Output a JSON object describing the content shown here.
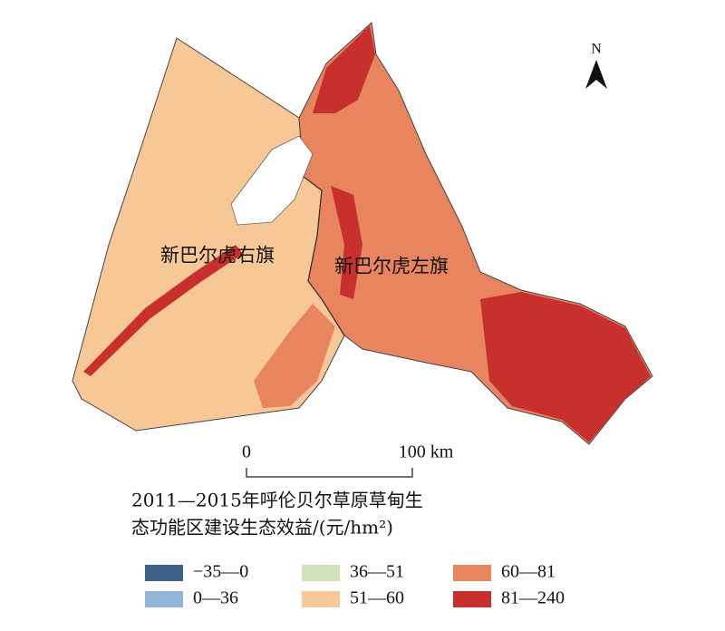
{
  "map": {
    "regions": [
      "新巴尔虎右旗",
      "新巴尔虎左旗"
    ],
    "north": "N",
    "scale_bar": {
      "start": "0",
      "end": "100 km"
    },
    "legend": {
      "title": [
        "2011—2015年呼伦贝尔草原草甸生",
        "态功能区建设生态效益/(元/hm²)"
      ],
      "items": [
        {
          "label": "−35—0",
          "color": "#3d5f8a"
        },
        {
          "label": "0—36",
          "color": "#93b5d8"
        },
        {
          "label": "36—51",
          "color": "#d3e0bd"
        },
        {
          "label": "51—60",
          "color": "#f7c896"
        },
        {
          "label": "60—81",
          "color": "#e8845e"
        },
        {
          "label": "81—240",
          "color": "#c8302e"
        }
      ]
    }
  }
}
